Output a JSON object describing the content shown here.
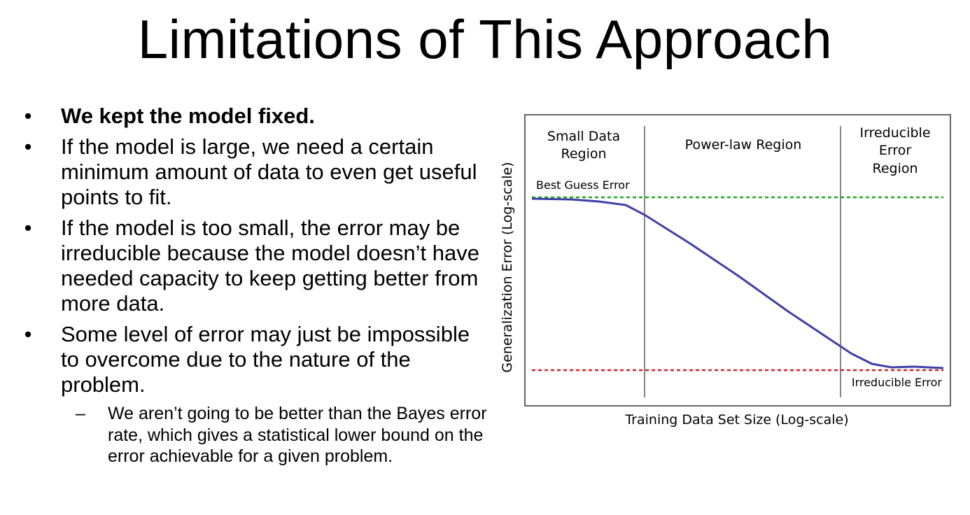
{
  "slide": {
    "title": "Limitations of This Approach"
  },
  "bullets": [
    {
      "marker": "•",
      "text": "We kept the model fixed.",
      "bold": true
    },
    {
      "marker": "•",
      "text": "If the model is large, we need a certain minimum amount of data to even get useful points to fit.",
      "bold": false
    },
    {
      "marker": "•",
      "text": "If the model is too small, the error may be irreducible because the model doesn’t have needed capacity to keep getting better from more data.",
      "bold": false
    },
    {
      "marker": "•",
      "text": "Some level of error may just be impossible to overcome due to the nature of the problem.",
      "bold": false
    }
  ],
  "sub_bullet": {
    "marker": "–",
    "text": "We aren’t going to be better than the Bayes error rate, which gives a statistical lower bound on the error achievable for a given problem."
  },
  "figure": {
    "xlabel": "Training Data Set Size (Log-scale)",
    "ylabel": "Generalization Error (Log-scale)",
    "regions": {
      "small_line1": "Small Data",
      "small_line2": "Region",
      "power": "Power-law Region",
      "irr_line1": "Irreducible",
      "irr_line2": "Error",
      "irr_line3": "Region"
    },
    "best_guess_label": "Best Guess Error",
    "irreducible_label": "Irreducible Error",
    "colors": {
      "curve": "#3f3fa8",
      "best_guess_line": "#1fa81f",
      "irreducible_line": "#d42020",
      "dividers": "#888888",
      "frame": "#666666"
    }
  }
}
